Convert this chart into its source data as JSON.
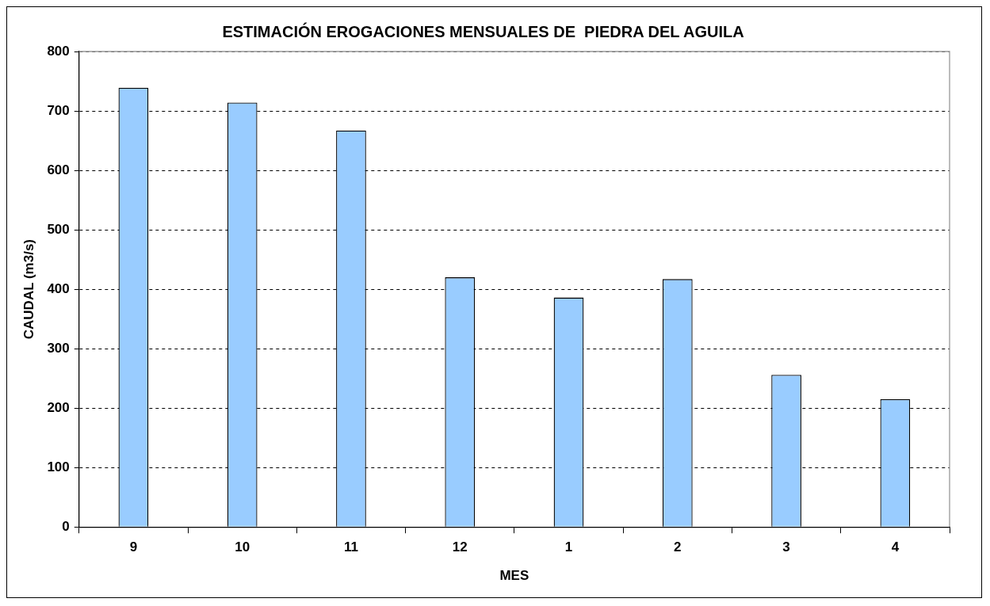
{
  "chart_data": {
    "type": "bar",
    "title": "ESTIMACIÓN EROGACIONES MENSUALES DE  PIEDRA DEL AGUILA",
    "xlabel": "MES",
    "ylabel": "CAUDAL (m3/s)",
    "categories": [
      "9",
      "10",
      "11",
      "12",
      "1",
      "2",
      "3",
      "4"
    ],
    "values": [
      739,
      714,
      667,
      420,
      386,
      417,
      256,
      215
    ],
    "color": "#99ccff",
    "ylim": [
      0,
      800
    ],
    "yticks": [
      0,
      100,
      200,
      300,
      400,
      500,
      600,
      700,
      800
    ],
    "grid": "y",
    "legend": false
  }
}
